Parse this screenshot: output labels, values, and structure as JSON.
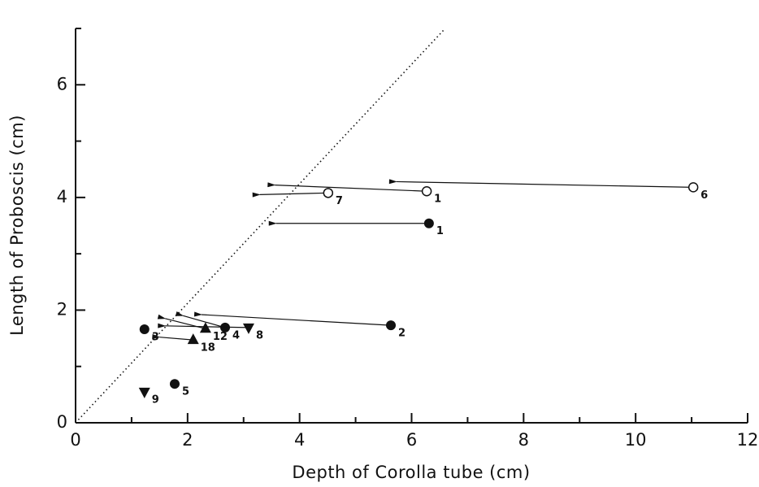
{
  "chart_data": {
    "type": "scatter",
    "x_label": "Depth of Corolla tube (cm)",
    "y_label": "Length of Proboscis (cm)",
    "xlim": [
      0,
      12
    ],
    "ylim": [
      0,
      7
    ],
    "xticks": [
      0,
      2,
      4,
      6,
      8,
      10,
      12
    ],
    "xminor_ticks": [
      1,
      3,
      5,
      7,
      9,
      11
    ],
    "yticks": [
      0,
      2,
      4,
      6
    ],
    "yminor_ticks": [
      1,
      3,
      5,
      7
    ],
    "color": "#111111",
    "reference_line": {
      "x": [
        0,
        6.6
      ],
      "y": [
        0,
        7
      ]
    },
    "series": [
      {
        "marker": "open-circle",
        "x": [
          11.03,
          6.27,
          4.51
        ],
        "values": [
          4.18,
          4.11,
          4.08
        ],
        "labels": [
          "6",
          "1",
          "7"
        ],
        "arrow_x": [
          5.73,
          3.56,
          3.29
        ],
        "arrow_y": [
          4.28,
          4.22,
          4.05
        ]
      },
      {
        "marker": "filled-circle",
        "x": [
          6.31,
          5.63,
          1.23,
          2.67,
          1.77
        ],
        "values": [
          3.54,
          1.73,
          1.66,
          1.69,
          0.69
        ],
        "labels": [
          "1",
          "2",
          "3",
          "4",
          "5"
        ],
        "arrow_x": [
          3.58,
          2.25,
          null,
          1.92,
          null
        ],
        "arrow_y": [
          3.54,
          1.92,
          null,
          1.9,
          null
        ]
      },
      {
        "marker": "triangle",
        "x": [
          2.32,
          2.1
        ],
        "values": [
          1.67,
          1.47
        ],
        "labels": [
          "12",
          "18"
        ],
        "arrow_x": [
          1.6,
          1.5
        ],
        "arrow_y": [
          1.85,
          1.52
        ]
      },
      {
        "marker": "down-triangle",
        "x": [
          3.09,
          1.23
        ],
        "values": [
          1.69,
          0.55
        ],
        "labels": [
          "8",
          "9"
        ],
        "arrow_x": [
          1.6,
          null
        ],
        "arrow_y": [
          1.72,
          null
        ]
      }
    ]
  }
}
